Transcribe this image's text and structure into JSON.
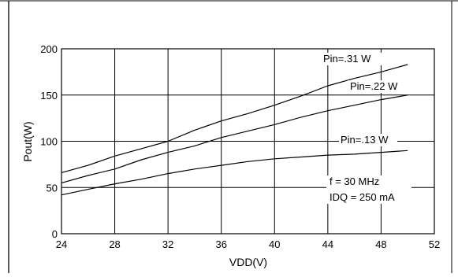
{
  "chart_data": {
    "type": "line",
    "xlabel": "VDD(V)",
    "ylabel": "Pout(W)",
    "xlim": [
      24,
      52
    ],
    "ylim": [
      0,
      200
    ],
    "x_ticks": [
      "24",
      "28",
      "32",
      "36",
      "40",
      "44",
      "48",
      "52"
    ],
    "y_ticks": [
      "0",
      "50",
      "100",
      "150",
      "200"
    ],
    "grid": true,
    "series": [
      {
        "name": "Pin=.31 W",
        "x": [
          24,
          26,
          28,
          30,
          32,
          34,
          36,
          38,
          40,
          42,
          44,
          46,
          48,
          50
        ],
        "y": [
          66,
          74,
          84,
          92,
          100,
          112,
          122,
          130,
          139,
          149,
          160,
          168,
          175,
          183
        ]
      },
      {
        "name": "Pin=.22 W",
        "x": [
          24,
          26,
          28,
          30,
          32,
          34,
          36,
          38,
          40,
          42,
          44,
          46,
          48,
          50
        ],
        "y": [
          55,
          63,
          70,
          80,
          88,
          95,
          104,
          111,
          118,
          126,
          133,
          139,
          145,
          150
        ]
      },
      {
        "name": "Pin=.13 W",
        "x": [
          24,
          26,
          28,
          30,
          32,
          34,
          36,
          38,
          40,
          42,
          44,
          46,
          48,
          50
        ],
        "y": [
          42,
          48,
          54,
          59,
          65,
          70,
          74,
          78,
          81,
          83,
          85,
          86,
          88,
          90
        ]
      }
    ],
    "annotations": [
      "f = 30 MHz",
      "IDQ = 250 mA"
    ]
  }
}
